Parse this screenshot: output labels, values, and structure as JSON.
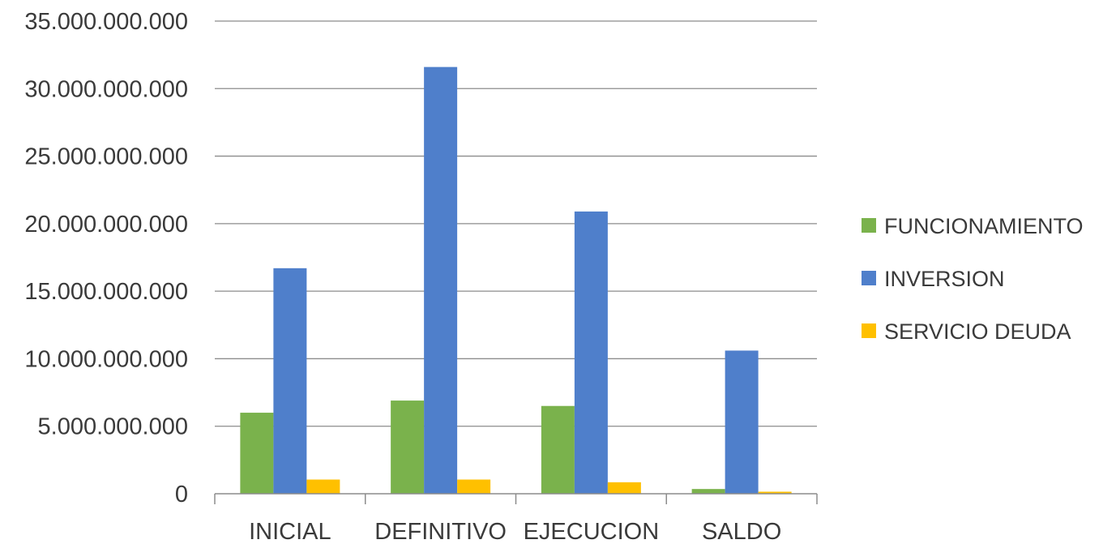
{
  "chart_data": {
    "type": "bar",
    "title": "",
    "xlabel": "",
    "ylabel": "",
    "categories": [
      "INICIAL",
      "DEFINITIVO",
      "EJECUCION",
      "SALDO"
    ],
    "series": [
      {
        "name": "FUNCIONAMIENTO",
        "color": "#7AB24C",
        "values": [
          6000000000,
          6900000000,
          6500000000,
          350000000
        ]
      },
      {
        "name": "INVERSION",
        "color": "#4F7FCB",
        "values": [
          16700000000,
          31600000000,
          20900000000,
          10600000000
        ]
      },
      {
        "name": "SERVICIO DEUDA",
        "color": "#FFC000",
        "values": [
          1050000000,
          1050000000,
          850000000,
          150000000
        ]
      }
    ],
    "ylim": [
      0,
      35000000000
    ],
    "yticks": [
      0,
      5000000000,
      10000000000,
      15000000000,
      20000000000,
      25000000000,
      30000000000,
      35000000000
    ],
    "ytick_labels": [
      "0",
      "5.000.000.000",
      "10.000.000.000",
      "15.000.000.000",
      "20.000.000.000",
      "25.000.000.000",
      "30.000.000.000",
      "35.000.000.000"
    ],
    "grid": true,
    "legend_position": "right"
  }
}
